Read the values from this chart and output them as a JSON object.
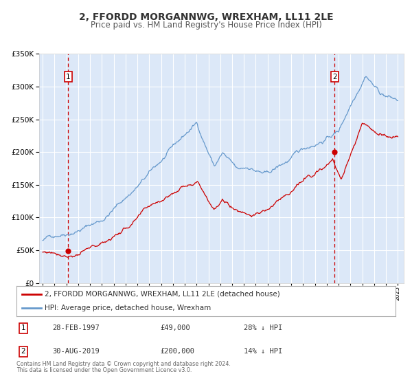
{
  "title": "2, FFORDD MORGANNWG, WREXHAM, LL11 2LE",
  "subtitle": "Price paid vs. HM Land Registry's House Price Index (HPI)",
  "ylim": [
    0,
    350000
  ],
  "xlim_start": 1994.7,
  "xlim_end": 2025.5,
  "plot_bg_color": "#dce8f8",
  "grid_color": "#ffffff",
  "transaction1_date": 1997.16,
  "transaction1_price": 49000,
  "transaction2_date": 2019.67,
  "transaction2_price": 200000,
  "legend_label_red": "2, FFORDD MORGANNWG, WREXHAM, LL11 2LE (detached house)",
  "legend_label_blue": "HPI: Average price, detached house, Wrexham",
  "table_row1": [
    "1",
    "28-FEB-1997",
    "£49,000",
    "28% ↓ HPI"
  ],
  "table_row2": [
    "2",
    "30-AUG-2019",
    "£200,000",
    "14% ↓ HPI"
  ],
  "footer1": "Contains HM Land Registry data © Crown copyright and database right 2024.",
  "footer2": "This data is licensed under the Open Government Licence v3.0.",
  "red_color": "#cc0000",
  "blue_color": "#6699cc",
  "title_fontsize": 10,
  "subtitle_fontsize": 8.5
}
